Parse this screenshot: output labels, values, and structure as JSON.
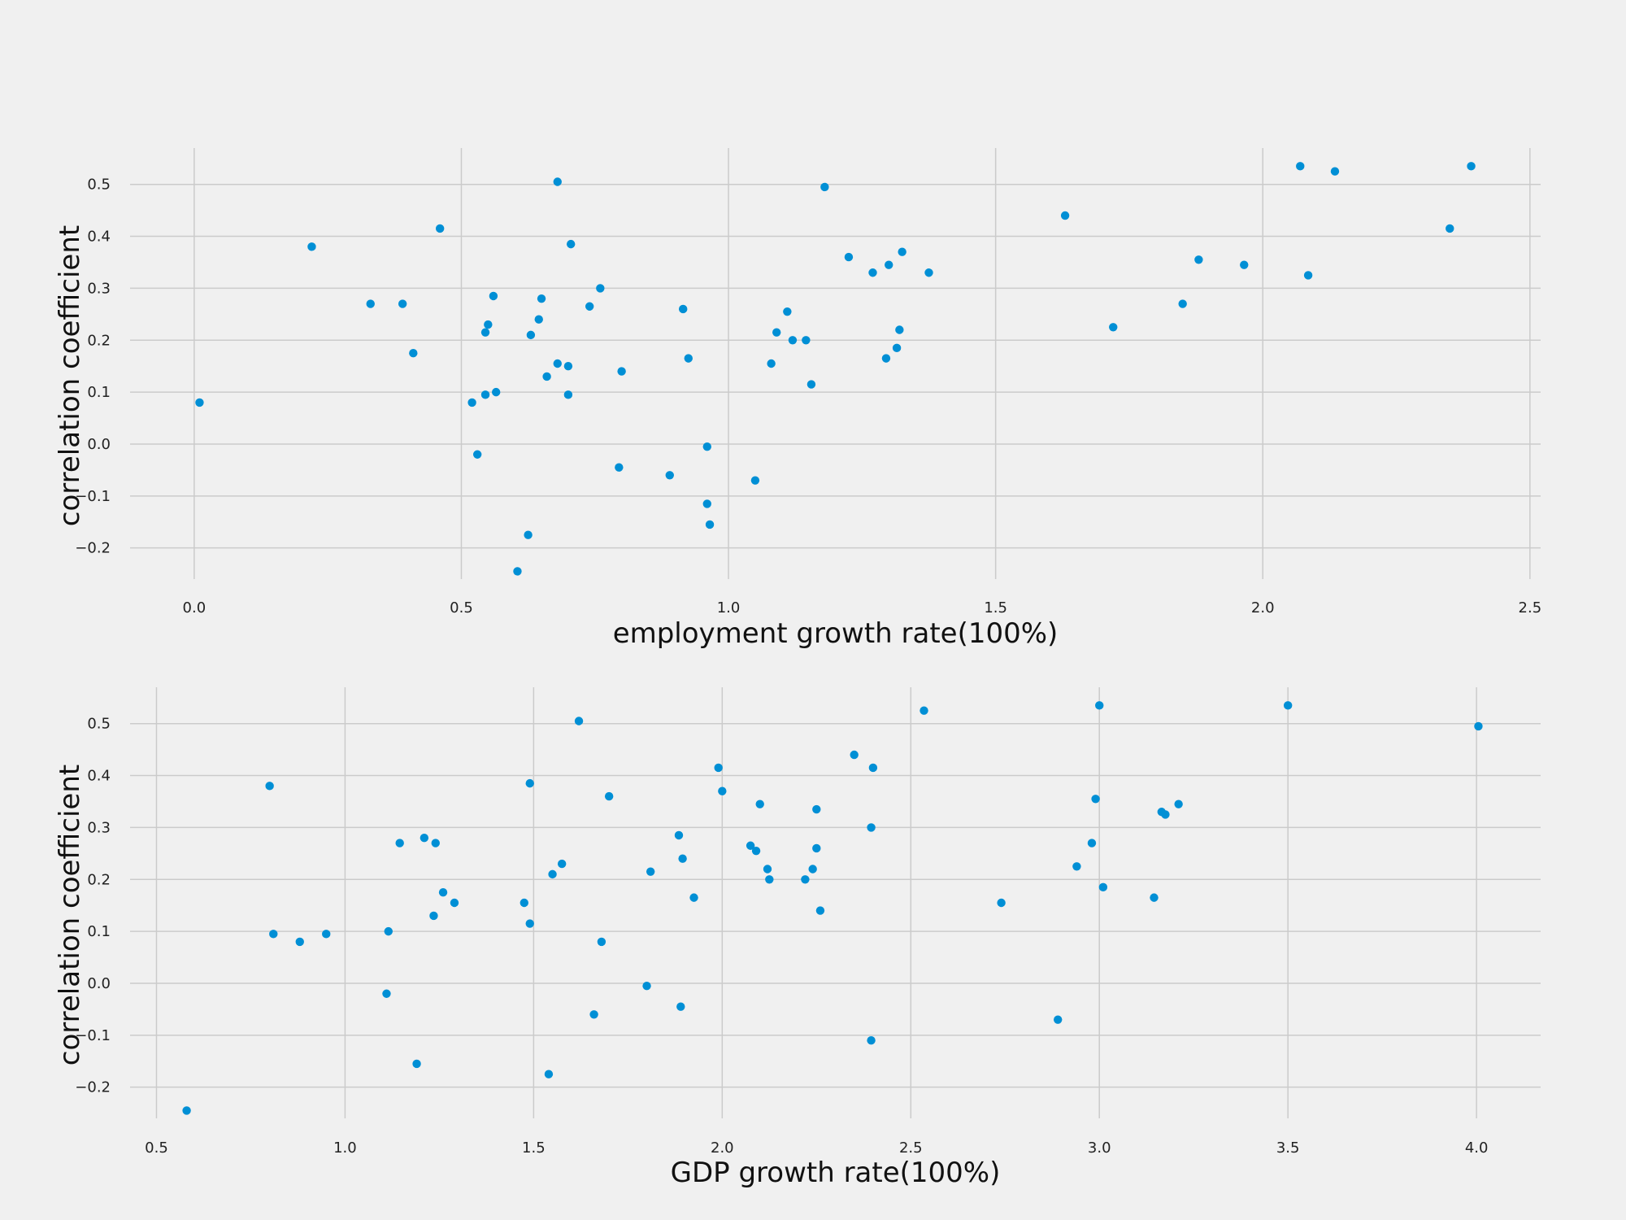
{
  "style": {
    "background": "#f0f0f0",
    "marker_color": "#008fd5",
    "grid_color": "#cbcbcb"
  },
  "chart_data": [
    {
      "type": "scatter",
      "xlabel": "employment growth rate(100%)",
      "ylabel": "correlation coefficient",
      "xlim": [
        -0.12,
        2.52
      ],
      "ylim": [
        -0.26,
        0.57
      ],
      "xticks": [
        0.0,
        0.5,
        1.0,
        1.5,
        2.0,
        2.5
      ],
      "xtick_labels": [
        "0.0",
        "0.5",
        "1.0",
        "1.5",
        "2.0",
        "2.5"
      ],
      "yticks": [
        -0.2,
        -0.1,
        0.0,
        0.1,
        0.2,
        0.3,
        0.4,
        0.5
      ],
      "ytick_labels": [
        "−0.2",
        "−0.1",
        "0.0",
        "0.1",
        "0.2",
        "0.3",
        "0.4",
        "0.5"
      ],
      "grid": true,
      "points": [
        [
          0.01,
          0.08
        ],
        [
          0.22,
          0.38
        ],
        [
          0.33,
          0.27
        ],
        [
          0.39,
          0.27
        ],
        [
          0.41,
          0.175
        ],
        [
          0.46,
          0.415
        ],
        [
          0.52,
          0.08
        ],
        [
          0.53,
          -0.02
        ],
        [
          0.545,
          0.095
        ],
        [
          0.545,
          0.215
        ],
        [
          0.55,
          0.23
        ],
        [
          0.56,
          0.285
        ],
        [
          0.565,
          0.1
        ],
        [
          0.605,
          -0.245
        ],
        [
          0.625,
          -0.175
        ],
        [
          0.63,
          0.21
        ],
        [
          0.645,
          0.24
        ],
        [
          0.65,
          0.28
        ],
        [
          0.66,
          0.13
        ],
        [
          0.68,
          0.505
        ],
        [
          0.68,
          0.155
        ],
        [
          0.7,
          0.15
        ],
        [
          0.7,
          0.095
        ],
        [
          0.705,
          0.385
        ],
        [
          0.74,
          0.265
        ],
        [
          0.76,
          0.3
        ],
        [
          0.795,
          -0.045
        ],
        [
          0.8,
          0.14
        ],
        [
          0.89,
          -0.06
        ],
        [
          0.915,
          0.26
        ],
        [
          0.925,
          0.165
        ],
        [
          0.96,
          -0.005
        ],
        [
          0.96,
          -0.115
        ],
        [
          0.965,
          -0.155
        ],
        [
          1.05,
          -0.07
        ],
        [
          1.08,
          0.155
        ],
        [
          1.09,
          0.215
        ],
        [
          1.11,
          0.255
        ],
        [
          1.12,
          0.2
        ],
        [
          1.145,
          0.2
        ],
        [
          1.155,
          0.115
        ],
        [
          1.18,
          0.495
        ],
        [
          1.225,
          0.36
        ],
        [
          1.27,
          0.33
        ],
        [
          1.295,
          0.165
        ],
        [
          1.3,
          0.345
        ],
        [
          1.315,
          0.185
        ],
        [
          1.32,
          0.22
        ],
        [
          1.325,
          0.37
        ],
        [
          1.375,
          0.33
        ],
        [
          1.63,
          0.44
        ],
        [
          1.72,
          0.225
        ],
        [
          1.85,
          0.27
        ],
        [
          1.88,
          0.355
        ],
        [
          1.965,
          0.345
        ],
        [
          2.07,
          0.535
        ],
        [
          2.085,
          0.325
        ],
        [
          2.135,
          0.525
        ],
        [
          2.35,
          0.415
        ],
        [
          2.39,
          0.535
        ]
      ]
    },
    {
      "type": "scatter",
      "xlabel": "GDP growth rate(100%)",
      "ylabel": "correlation coefficient",
      "xlim": [
        0.43,
        4.17
      ],
      "ylim": [
        -0.26,
        0.57
      ],
      "xticks": [
        0.5,
        1.0,
        1.5,
        2.0,
        2.5,
        3.0,
        3.5,
        4.0
      ],
      "xtick_labels": [
        "0.5",
        "1.0",
        "1.5",
        "2.0",
        "2.5",
        "3.0",
        "3.5",
        "4.0"
      ],
      "yticks": [
        -0.2,
        -0.1,
        0.0,
        0.1,
        0.2,
        0.3,
        0.4,
        0.5
      ],
      "ytick_labels": [
        "−0.2",
        "−0.1",
        "0.0",
        "0.1",
        "0.2",
        "0.3",
        "0.4",
        "0.5"
      ],
      "grid": true,
      "points": [
        [
          0.58,
          -0.245
        ],
        [
          0.8,
          0.38
        ],
        [
          0.81,
          0.095
        ],
        [
          0.88,
          0.08
        ],
        [
          0.95,
          0.095
        ],
        [
          1.11,
          -0.02
        ],
        [
          1.115,
          0.1
        ],
        [
          1.145,
          0.27
        ],
        [
          1.19,
          -0.155
        ],
        [
          1.21,
          0.28
        ],
        [
          1.235,
          0.13
        ],
        [
          1.24,
          0.27
        ],
        [
          1.26,
          0.175
        ],
        [
          1.29,
          0.155
        ],
        [
          1.475,
          0.155
        ],
        [
          1.49,
          0.115
        ],
        [
          1.49,
          0.385
        ],
        [
          1.54,
          -0.175
        ],
        [
          1.55,
          0.21
        ],
        [
          1.575,
          0.23
        ],
        [
          1.62,
          0.505
        ],
        [
          1.66,
          -0.06
        ],
        [
          1.68,
          0.08
        ],
        [
          1.7,
          0.36
        ],
        [
          1.8,
          -0.005
        ],
        [
          1.81,
          0.215
        ],
        [
          1.885,
          0.285
        ],
        [
          1.89,
          -0.045
        ],
        [
          1.895,
          0.24
        ],
        [
          1.925,
          0.165
        ],
        [
          1.99,
          0.415
        ],
        [
          2.0,
          0.37
        ],
        [
          2.075,
          0.265
        ],
        [
          2.09,
          0.255
        ],
        [
          2.1,
          0.345
        ],
        [
          2.12,
          0.22
        ],
        [
          2.125,
          0.2
        ],
        [
          2.22,
          0.2
        ],
        [
          2.24,
          0.22
        ],
        [
          2.25,
          0.26
        ],
        [
          2.25,
          0.335
        ],
        [
          2.26,
          0.14
        ],
        [
          2.35,
          0.44
        ],
        [
          2.395,
          -0.11
        ],
        [
          2.395,
          0.3
        ],
        [
          2.4,
          0.415
        ],
        [
          2.535,
          0.525
        ],
        [
          2.74,
          0.155
        ],
        [
          2.89,
          -0.07
        ],
        [
          2.94,
          0.225
        ],
        [
          2.98,
          0.27
        ],
        [
          2.99,
          0.355
        ],
        [
          3.0,
          0.535
        ],
        [
          3.01,
          0.185
        ],
        [
          3.145,
          0.165
        ],
        [
          3.165,
          0.33
        ],
        [
          3.175,
          0.325
        ],
        [
          3.21,
          0.345
        ],
        [
          3.5,
          0.535
        ],
        [
          4.005,
          0.495
        ]
      ]
    }
  ]
}
